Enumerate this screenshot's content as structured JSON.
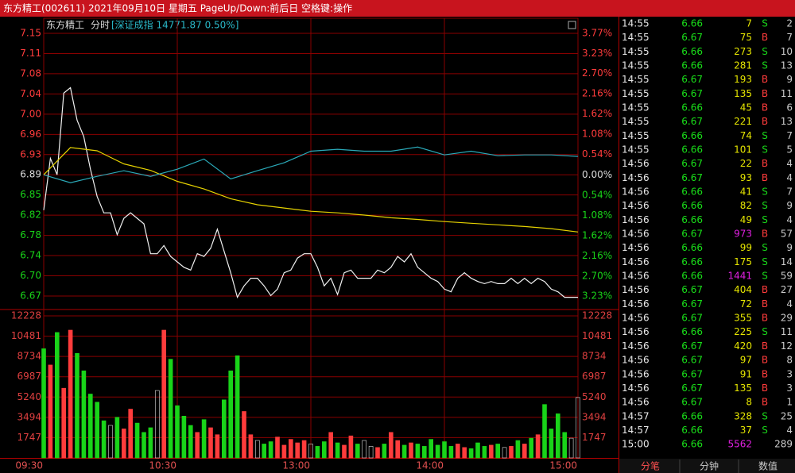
{
  "window_title": "东方精工(002611) 2021年09月10日 星期五 PageUp/Down:前后日 空格键:操作",
  "chart_data": [
    {
      "type": "line",
      "stock_name": "东方精工",
      "mode": "分时",
      "index_label": "[深证成指 14771.87 0.50%]",
      "up_color": "#ff3c3c",
      "down_color": "#19d419",
      "flat_color": "#dddddd",
      "xlim": [
        0,
        240
      ],
      "xticks": [
        {
          "value": 0,
          "label": "09:30"
        },
        {
          "value": 60,
          "label": "10:30"
        },
        {
          "value": 120,
          "label": "13:00"
        },
        {
          "value": 180,
          "label": "14:00"
        },
        {
          "value": 240,
          "label": "15:00"
        }
      ],
      "ylim": [
        6.6673,
        7.1498
      ],
      "yticks": [
        {
          "value": 7.1498,
          "label": "7.15"
        },
        {
          "value": 7.1127,
          "label": "7.11"
        },
        {
          "value": 7.0756,
          "label": "7.08"
        },
        {
          "value": 7.0384,
          "label": "7.04"
        },
        {
          "value": 7.0013,
          "label": "7.00"
        },
        {
          "value": 6.9642,
          "label": "6.96"
        },
        {
          "value": 6.9271,
          "label": "6.93"
        },
        6.89,
        {
          "value": 6.8529,
          "label": "6.85"
        },
        {
          "value": 6.8158,
          "label": "6.82"
        },
        {
          "value": 6.7787,
          "label": "6.78"
        },
        {
          "value": 6.7416,
          "label": "6.74"
        },
        {
          "value": 6.7045,
          "label": "6.70"
        },
        {
          "value": 6.6673,
          "label": "6.67"
        }
      ],
      "y2lim": [
        -3.23,
        3.77
      ],
      "y2ticks": [
        {
          "value": 3.77,
          "label": "3.77%"
        },
        {
          "value": 3.23,
          "label": "3.23%"
        },
        {
          "value": 2.7,
          "label": "2.70%"
        },
        {
          "value": 2.16,
          "label": "2.16%"
        },
        {
          "value": 1.62,
          "label": "1.62%"
        },
        {
          "value": 1.08,
          "label": "1.08%"
        },
        {
          "value": 0.54,
          "label": "0.54%"
        },
        {
          "value": 0,
          "label": "0.00%"
        },
        {
          "value": -0.54,
          "label": "0.54%"
        },
        {
          "value": -1.08,
          "label": "1.08%"
        },
        {
          "value": -1.62,
          "label": "1.62%"
        },
        {
          "value": -2.16,
          "label": "2.16%"
        },
        {
          "value": -2.7,
          "label": "2.70%"
        },
        {
          "value": -3.23,
          "label": "3.23%"
        }
      ],
      "series": [
        {
          "color": "#f0f0f0",
          "x": [
            0,
            3,
            6,
            9,
            12,
            15,
            18,
            21,
            24,
            27,
            30,
            33,
            36,
            39,
            42,
            45,
            48,
            51,
            54,
            57,
            60,
            63,
            66,
            69,
            72,
            75,
            78,
            81,
            84,
            87,
            90,
            93,
            96,
            99,
            102,
            105,
            108,
            111,
            114,
            117,
            120,
            123,
            126,
            129,
            132,
            135,
            138,
            141,
            144,
            147,
            150,
            153,
            156,
            159,
            162,
            165,
            168,
            171,
            174,
            177,
            180,
            183,
            186,
            189,
            192,
            195,
            198,
            201,
            204,
            207,
            210,
            213,
            216,
            219,
            222,
            225,
            228,
            231,
            234,
            237,
            240
          ],
          "values": [
            6.825,
            6.92,
            6.89,
            7.04,
            7.05,
            6.99,
            6.96,
            6.9,
            6.85,
            6.82,
            6.82,
            6.78,
            6.81,
            6.82,
            6.81,
            6.8,
            6.745,
            6.745,
            6.76,
            6.74,
            6.73,
            6.72,
            6.715,
            6.745,
            6.74,
            6.755,
            6.79,
            6.75,
            6.71,
            6.665,
            6.686,
            6.7,
            6.7,
            6.686,
            6.668,
            6.68,
            6.71,
            6.715,
            6.737,
            6.745,
            6.745,
            6.72,
            6.686,
            6.7,
            6.67,
            6.71,
            6.715,
            6.7,
            6.7,
            6.7,
            6.715,
            6.71,
            6.72,
            6.74,
            6.73,
            6.745,
            6.72,
            6.71,
            6.7,
            6.694,
            6.68,
            6.675,
            6.7,
            6.71,
            6.7,
            6.694,
            6.69,
            6.694,
            6.69,
            6.69,
            6.7,
            6.69,
            6.7,
            6.69,
            6.7,
            6.694,
            6.68,
            6.675,
            6.665,
            6.665,
            6.665
          ]
        },
        {
          "color": "#e6d200",
          "x": [
            0,
            12,
            24,
            36,
            48,
            60,
            72,
            84,
            96,
            108,
            120,
            132,
            144,
            156,
            168,
            180,
            192,
            204,
            216,
            228,
            240
          ],
          "values": [
            6.89,
            6.94,
            6.934,
            6.91,
            6.898,
            6.878,
            6.864,
            6.846,
            6.835,
            6.829,
            6.823,
            6.82,
            6.816,
            6.811,
            6.808,
            6.804,
            6.801,
            6.798,
            6.795,
            6.791,
            6.785
          ]
        },
        {
          "color": "#2aa9b8",
          "axis": "y2",
          "x": [
            0,
            12,
            24,
            36,
            48,
            60,
            72,
            84,
            96,
            108,
            120,
            132,
            144,
            156,
            168,
            180,
            192,
            204,
            216,
            228,
            240
          ],
          "values": [
            0,
            -0.21,
            -0.04,
            0.11,
            -0.04,
            0.15,
            0.42,
            -0.11,
            0.11,
            0.32,
            0.63,
            0.68,
            0.63,
            0.63,
            0.74,
            0.53,
            0.63,
            0.51,
            0.53,
            0.53,
            0.49
          ]
        }
      ]
    },
    {
      "type": "bar",
      "x": [
        0,
        3,
        6,
        9,
        12,
        15,
        18,
        21,
        24,
        27,
        30,
        33,
        36,
        39,
        42,
        45,
        48,
        51,
        54,
        57,
        60,
        63,
        66,
        69,
        72,
        75,
        78,
        81,
        84,
        87,
        90,
        93,
        96,
        99,
        102,
        105,
        108,
        111,
        114,
        117,
        120,
        123,
        126,
        129,
        132,
        135,
        138,
        141,
        144,
        147,
        150,
        153,
        156,
        159,
        162,
        165,
        168,
        171,
        174,
        177,
        180,
        183,
        186,
        189,
        192,
        195,
        198,
        201,
        204,
        207,
        210,
        213,
        216,
        219,
        222,
        225,
        228,
        231,
        234,
        237,
        240
      ],
      "values": [
        9400,
        8000,
        10800,
        6000,
        11000,
        9000,
        7500,
        5500,
        4800,
        3200,
        2800,
        3500,
        2500,
        4200,
        3000,
        2200,
        2600,
        5800,
        11000,
        8500,
        4500,
        3600,
        2800,
        2200,
        3300,
        2600,
        2000,
        5000,
        7500,
        8800,
        4000,
        2000,
        1500,
        1200,
        1400,
        1800,
        1100,
        1600,
        1300,
        1500,
        1200,
        1000,
        1400,
        2200,
        1300,
        1100,
        1900,
        1200,
        1500,
        1000,
        900,
        1200,
        2200,
        1500,
        1100,
        1300,
        1200,
        1000,
        1600,
        1100,
        1400,
        1000,
        1200,
        900,
        800,
        1300,
        1000,
        1100,
        1200,
        900,
        1000,
        1500,
        1200,
        1700,
        2000,
        4600,
        2500,
        3800,
        2200,
        1700,
        5200
      ],
      "ylim": [
        0,
        12228
      ],
      "yticks": [
        12228,
        10481,
        8734,
        6987,
        5240,
        3494,
        1747
      ]
    }
  ],
  "trades": {
    "side_colors": {
      "B": "#ff3c3c",
      "S": "#19d419"
    },
    "highlight_rows": [
      15,
      18,
      30
    ],
    "rows": [
      [
        "14:55",
        6.66,
        7,
        "S",
        2
      ],
      [
        "14:55",
        6.67,
        75,
        "B",
        7
      ],
      [
        "14:55",
        6.66,
        273,
        "S",
        10
      ],
      [
        "14:55",
        6.66,
        281,
        "S",
        13
      ],
      [
        "14:55",
        6.67,
        193,
        "B",
        9
      ],
      [
        "14:55",
        6.67,
        135,
        "B",
        11
      ],
      [
        "14:55",
        6.66,
        45,
        "B",
        6
      ],
      [
        "14:55",
        6.67,
        221,
        "B",
        13
      ],
      [
        "14:55",
        6.66,
        74,
        "S",
        7
      ],
      [
        "14:55",
        6.66,
        101,
        "S",
        5
      ],
      [
        "14:56",
        6.67,
        22,
        "B",
        4
      ],
      [
        "14:56",
        6.67,
        93,
        "B",
        4
      ],
      [
        "14:56",
        6.66,
        41,
        "S",
        7
      ],
      [
        "14:56",
        6.66,
        82,
        "S",
        9
      ],
      [
        "14:56",
        6.66,
        49,
        "S",
        4
      ],
      [
        "14:56",
        6.67,
        973,
        "B",
        57
      ],
      [
        "14:56",
        6.66,
        99,
        "S",
        9
      ],
      [
        "14:56",
        6.66,
        175,
        "S",
        14
      ],
      [
        "14:56",
        6.66,
        1441,
        "S",
        59
      ],
      [
        "14:56",
        6.67,
        404,
        "B",
        27
      ],
      [
        "14:56",
        6.67,
        72,
        "B",
        4
      ],
      [
        "14:56",
        6.67,
        355,
        "B",
        29
      ],
      [
        "14:56",
        6.66,
        225,
        "S",
        11
      ],
      [
        "14:56",
        6.67,
        420,
        "B",
        12
      ],
      [
        "14:56",
        6.67,
        97,
        "B",
        8
      ],
      [
        "14:56",
        6.67,
        91,
        "B",
        3
      ],
      [
        "14:56",
        6.67,
        135,
        "B",
        3
      ],
      [
        "14:56",
        6.67,
        8,
        "B",
        1
      ],
      [
        "14:57",
        6.66,
        328,
        "S",
        25
      ],
      [
        "14:57",
        6.66,
        37,
        "S",
        4
      ],
      [
        "15:00",
        6.66,
        5562,
        null,
        289
      ]
    ]
  },
  "tabs": [
    "分笔",
    "分钟",
    "数值"
  ],
  "active_tab": 0
}
